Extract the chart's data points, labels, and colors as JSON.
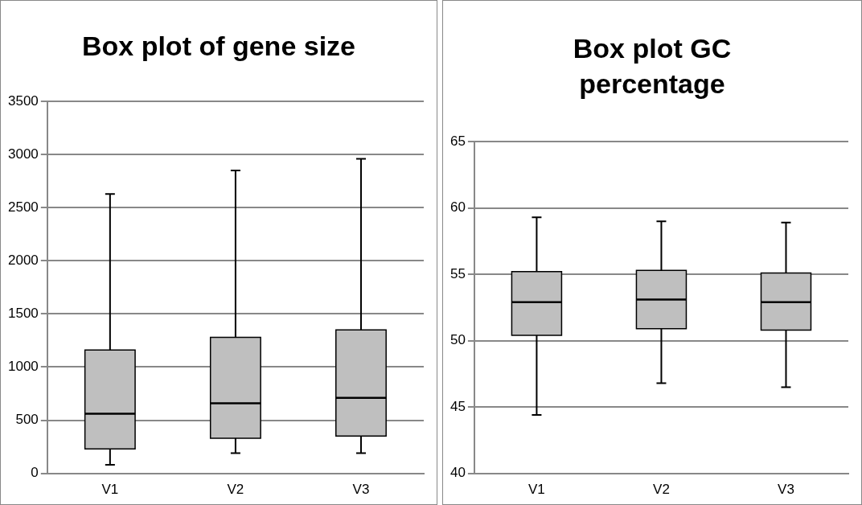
{
  "chart_data": [
    {
      "type": "box",
      "title": "Box plot of gene size",
      "categories": [
        "V1",
        "V2",
        "V3"
      ],
      "ylim": [
        0,
        3500
      ],
      "yticks": [
        0,
        500,
        1000,
        1500,
        2000,
        2500,
        3000,
        3500
      ],
      "grid": "y",
      "series": [
        {
          "color": "#bfbfbf",
          "boxes": [
            {
              "low": 80,
              "q1": 230,
              "median": 560,
              "q3": 1160,
              "high": 2630
            },
            {
              "low": 190,
              "q1": 330,
              "median": 660,
              "q3": 1280,
              "high": 2850
            },
            {
              "low": 190,
              "q1": 350,
              "median": 710,
              "q3": 1350,
              "high": 2960
            }
          ]
        }
      ]
    },
    {
      "type": "box",
      "title": "Box plot GC percentage",
      "categories": [
        "V1",
        "V2",
        "V3"
      ],
      "ylim": [
        40,
        65
      ],
      "yticks": [
        40,
        45,
        50,
        55,
        60,
        65
      ],
      "grid": "y",
      "series": [
        {
          "color": "#bfbfbf",
          "boxes": [
            {
              "low": 44.4,
              "q1": 50.4,
              "median": 52.9,
              "q3": 55.2,
              "high": 59.3
            },
            {
              "low": 46.8,
              "q1": 50.9,
              "median": 53.1,
              "q3": 55.3,
              "high": 59.0
            },
            {
              "low": 46.5,
              "q1": 50.8,
              "median": 52.9,
              "q3": 55.1,
              "high": 58.9
            }
          ]
        }
      ]
    }
  ]
}
